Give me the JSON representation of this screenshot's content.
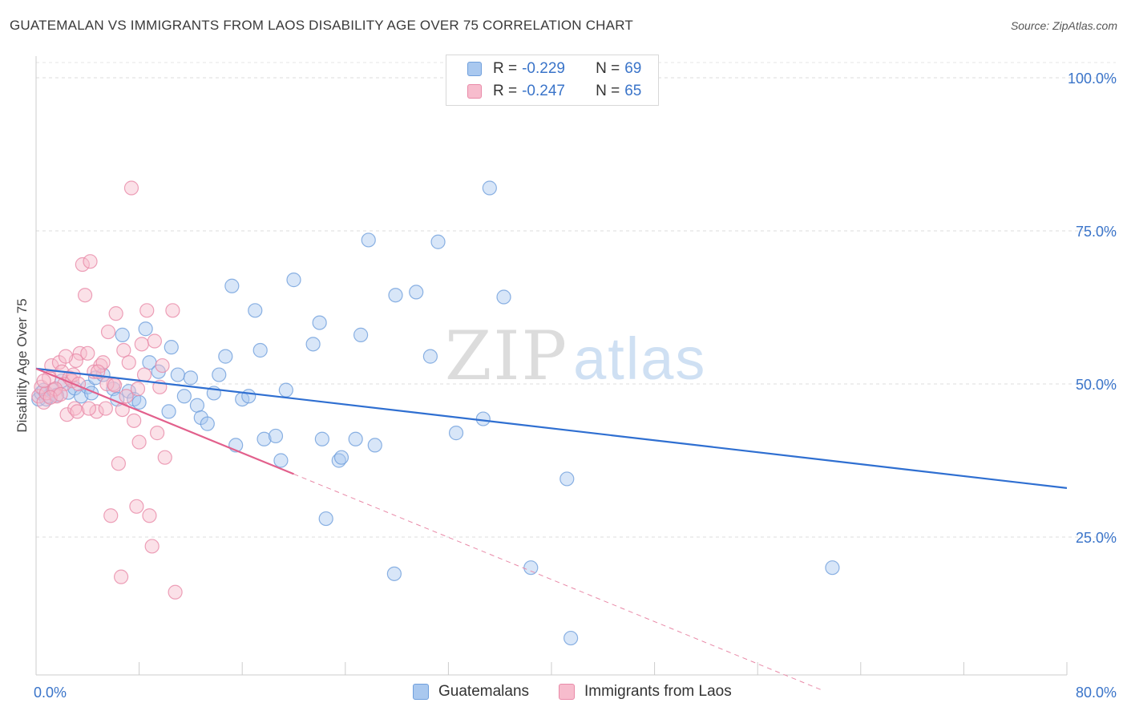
{
  "title": "GUATEMALAN VS IMMIGRANTS FROM LAOS DISABILITY AGE OVER 75 CORRELATION CHART",
  "source": "Source: ZipAtlas.com",
  "watermark": {
    "zip": "ZIP",
    "atlas": "atlas"
  },
  "legend": [
    {
      "r_label": "R =",
      "r_value": "-0.229",
      "n_label": "N =",
      "n_value": "69",
      "color": "#a9c8ef",
      "border": "#6f9fdc"
    },
    {
      "r_label": "R =",
      "r_value": "-0.247",
      "n_label": "N =",
      "n_value": "65",
      "color": "#f7bccd",
      "border": "#e98aa8"
    }
  ],
  "chart_data": {
    "type": "scatter",
    "ylabel": "Disability Age Over 75",
    "xlabel": "",
    "xlim": [
      0,
      80
    ],
    "ylim": [
      0,
      105
    ],
    "x_tick_labels": [
      "0.0%",
      "80.0%"
    ],
    "y_ticks": [
      25,
      50,
      75,
      100
    ],
    "y_tick_labels": [
      "25.0%",
      "50.0%",
      "75.0%",
      "100.0%"
    ],
    "series": [
      {
        "name": "Guatemalans",
        "color": "#6f9fdc",
        "fill": "#a9c8ef",
        "trend": {
          "x0": 0,
          "y0": 52.5,
          "x1": 80,
          "y1": 33.0,
          "solid_to": 80
        },
        "points": [
          [
            0.2,
            47.5
          ],
          [
            0.4,
            48.5
          ],
          [
            0.6,
            49
          ],
          [
            0.8,
            47.5
          ],
          [
            1.0,
            48
          ],
          [
            1.3,
            49
          ],
          [
            1.6,
            48.2
          ],
          [
            2.0,
            50.5
          ],
          [
            2.5,
            48.6
          ],
          [
            3.0,
            49.3
          ],
          [
            3.5,
            48.0
          ],
          [
            4.0,
            49.5
          ],
          [
            4.3,
            48.5
          ],
          [
            4.6,
            51
          ],
          [
            5.2,
            51.5
          ],
          [
            6.0,
            49.2
          ],
          [
            6.3,
            47.5
          ],
          [
            6.7,
            58
          ],
          [
            7.2,
            48.8
          ],
          [
            7.6,
            47.5
          ],
          [
            8.0,
            47.0
          ],
          [
            8.5,
            59
          ],
          [
            8.8,
            53.5
          ],
          [
            9.5,
            52
          ],
          [
            10.3,
            45.5
          ],
          [
            10.5,
            56
          ],
          [
            11.0,
            51.5
          ],
          [
            11.5,
            48.0
          ],
          [
            12.0,
            51
          ],
          [
            12.5,
            46.5
          ],
          [
            12.8,
            44.5
          ],
          [
            13.3,
            43.5
          ],
          [
            13.8,
            48.5
          ],
          [
            14.2,
            51.5
          ],
          [
            14.7,
            54.5
          ],
          [
            15.2,
            66
          ],
          [
            15.5,
            40
          ],
          [
            16.0,
            47.5
          ],
          [
            16.5,
            48.0
          ],
          [
            17.0,
            62
          ],
          [
            17.4,
            55.5
          ],
          [
            17.7,
            41
          ],
          [
            18.6,
            41.5
          ],
          [
            19.0,
            37.5
          ],
          [
            19.4,
            49
          ],
          [
            20.0,
            67
          ],
          [
            21.5,
            56.5
          ],
          [
            22.0,
            60
          ],
          [
            22.2,
            41
          ],
          [
            22.5,
            28
          ],
          [
            23.5,
            37.5
          ],
          [
            23.7,
            38
          ],
          [
            24.8,
            41
          ],
          [
            25.2,
            58
          ],
          [
            25.8,
            73.5
          ],
          [
            26.3,
            40
          ],
          [
            27.8,
            19
          ],
          [
            27.9,
            64.5
          ],
          [
            29.5,
            65
          ],
          [
            30.6,
            54.5
          ],
          [
            31.2,
            73.2
          ],
          [
            32.6,
            42
          ],
          [
            34.7,
            44.3
          ],
          [
            35.2,
            82
          ],
          [
            36.3,
            64.2
          ],
          [
            38.4,
            20
          ],
          [
            41.2,
            34.5
          ],
          [
            41.5,
            8.5
          ],
          [
            61.8,
            20
          ]
        ]
      },
      {
        "name": "Immigrants from Laos",
        "color": "#e98aa8",
        "fill": "#f7bccd",
        "trend": {
          "x0": 0,
          "y0": 52.5,
          "x1": 61,
          "y1": 0,
          "solid_to": 20
        },
        "points": [
          [
            0.2,
            48
          ],
          [
            0.4,
            49.5
          ],
          [
            0.6,
            47
          ],
          [
            0.8,
            48.5
          ],
          [
            1.0,
            51
          ],
          [
            1.2,
            53
          ],
          [
            1.4,
            49
          ],
          [
            1.6,
            48
          ],
          [
            1.8,
            53.5
          ],
          [
            2.0,
            52
          ],
          [
            2.2,
            50
          ],
          [
            2.4,
            45
          ],
          [
            2.6,
            51
          ],
          [
            2.8,
            50.5
          ],
          [
            3.0,
            46
          ],
          [
            3.2,
            45.5
          ],
          [
            3.4,
            55
          ],
          [
            3.6,
            69.5
          ],
          [
            3.8,
            64.5
          ],
          [
            4.0,
            55
          ],
          [
            4.2,
            70
          ],
          [
            4.5,
            52
          ],
          [
            4.7,
            45.5
          ],
          [
            5.0,
            53
          ],
          [
            5.2,
            53.5
          ],
          [
            5.4,
            46
          ],
          [
            5.6,
            58.5
          ],
          [
            5.8,
            28.5
          ],
          [
            6.0,
            50
          ],
          [
            6.2,
            61.5
          ],
          [
            6.4,
            37
          ],
          [
            6.6,
            18.5
          ],
          [
            6.8,
            55.5
          ],
          [
            7.0,
            48
          ],
          [
            7.2,
            53.5
          ],
          [
            7.4,
            82
          ],
          [
            7.6,
            44
          ],
          [
            7.8,
            30
          ],
          [
            8.0,
            40.5
          ],
          [
            8.2,
            56.5
          ],
          [
            8.4,
            51.5
          ],
          [
            8.6,
            62
          ],
          [
            8.8,
            28.5
          ],
          [
            9.0,
            23.5
          ],
          [
            9.2,
            57
          ],
          [
            9.4,
            42
          ],
          [
            9.6,
            49.5
          ],
          [
            10.0,
            38
          ],
          [
            10.6,
            62
          ],
          [
            10.8,
            16
          ],
          [
            4.8,
            52
          ],
          [
            3.1,
            53.8
          ],
          [
            2.3,
            54.5
          ],
          [
            1.5,
            49.2
          ],
          [
            1.1,
            47.8
          ],
          [
            5.5,
            50
          ],
          [
            6.1,
            49.8
          ],
          [
            7.9,
            49.2
          ],
          [
            9.8,
            53
          ],
          [
            0.6,
            50.5
          ],
          [
            2.9,
            51.5
          ],
          [
            4.1,
            46
          ],
          [
            6.7,
            45.8
          ],
          [
            3.3,
            50
          ],
          [
            1.9,
            48.3
          ]
        ]
      }
    ]
  }
}
